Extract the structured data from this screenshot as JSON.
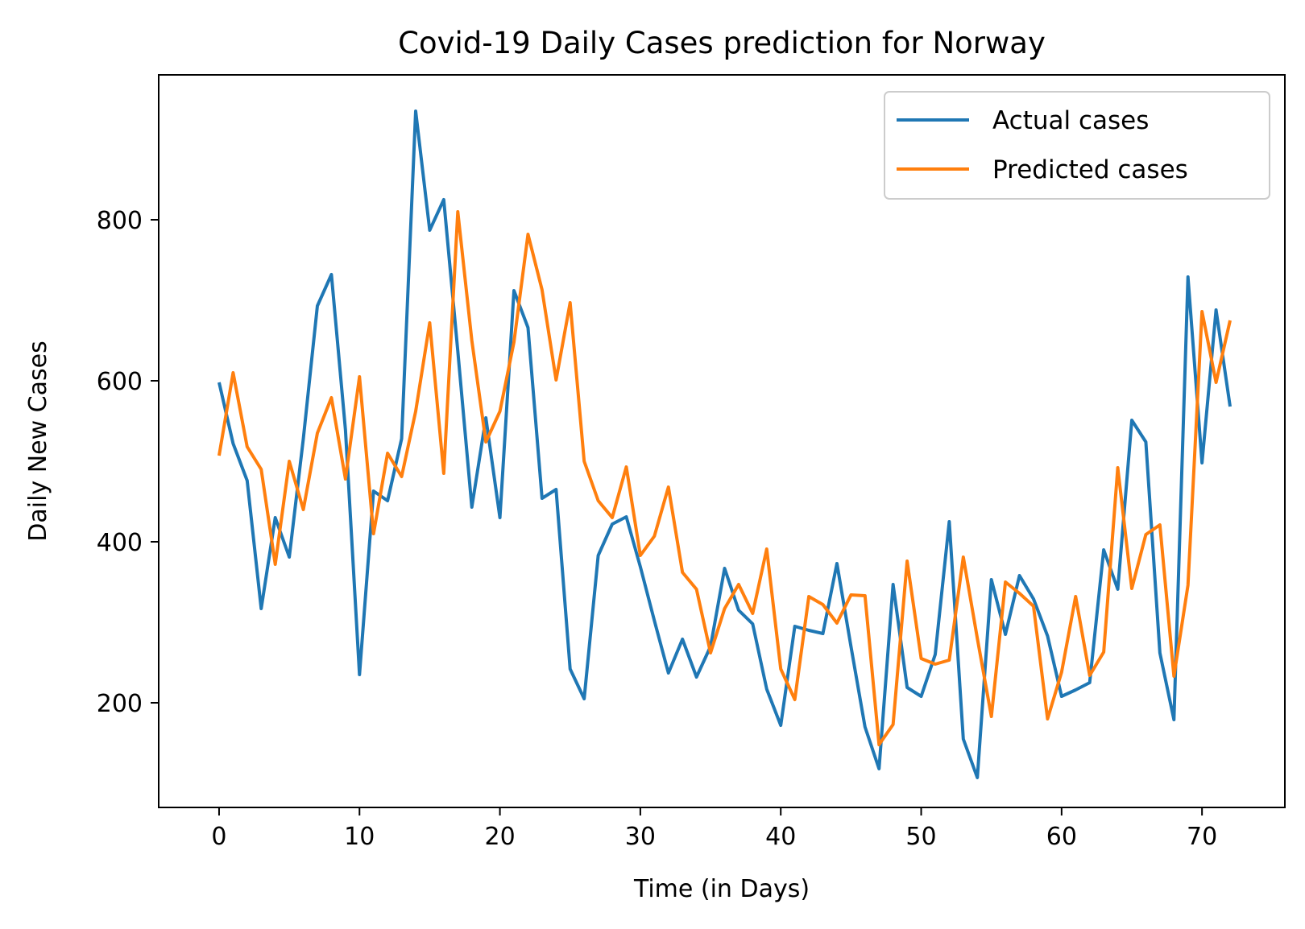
{
  "chart_data": {
    "type": "line",
    "title": "Covid-19 Daily Cases prediction for Norway",
    "xlabel": "Time (in Days)",
    "ylabel": "Daily New Cases",
    "xlim": [
      -4.3,
      75.9
    ],
    "ylim": [
      70,
      980
    ],
    "xticks": [
      0,
      10,
      20,
      30,
      40,
      50,
      60,
      70
    ],
    "yticks": [
      200,
      400,
      600,
      800
    ],
    "grid": false,
    "legend_position": "top-right",
    "series": [
      {
        "name": "Actual cases",
        "color": "#1f77b4",
        "values": [
          598,
          522,
          476,
          317,
          430,
          381,
          528,
          693,
          732,
          539,
          235,
          463,
          451,
          528,
          935,
          787,
          825,
          637,
          443,
          554,
          430,
          712,
          666,
          454,
          465,
          242,
          205,
          383,
          422,
          431,
          369,
          302,
          237,
          279,
          232,
          270,
          367,
          315,
          298,
          217,
          172,
          295,
          290,
          286,
          373,
          270,
          170,
          118,
          347,
          219,
          208,
          260,
          425,
          155,
          107,
          353,
          285,
          358,
          329,
          283,
          208,
          216,
          225,
          390,
          341,
          551,
          524,
          262,
          179,
          729,
          498,
          688,
          568
        ]
      },
      {
        "name": "Predicted cases",
        "color": "#ff7f0e",
        "values": [
          507,
          610,
          518,
          490,
          372,
          500,
          440,
          535,
          579,
          478,
          605,
          410,
          510,
          481,
          562,
          672,
          485,
          810,
          650,
          524,
          562,
          648,
          782,
          713,
          601,
          697,
          500,
          451,
          430,
          493,
          383,
          407,
          468,
          362,
          341,
          262,
          317,
          347,
          311,
          391,
          242,
          204,
          332,
          322,
          299,
          334,
          333,
          148,
          173,
          376,
          255,
          248,
          253,
          381,
          280,
          183,
          350,
          336,
          320,
          180,
          238,
          332,
          234,
          263,
          492,
          342,
          409,
          421,
          233,
          346,
          686,
          598,
          675
        ]
      }
    ]
  }
}
